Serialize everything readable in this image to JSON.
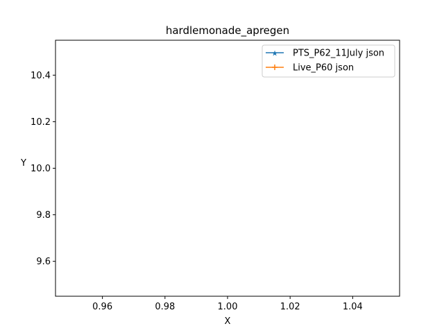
{
  "chart_data": {
    "type": "line",
    "title": "hardlemonade_apregen",
    "xlabel": "X",
    "ylabel": "Y",
    "xlim": [
      0.945,
      1.055
    ],
    "ylim": [
      9.45,
      10.55
    ],
    "xticks": [
      0.96,
      0.98,
      1.0,
      1.02,
      1.04
    ],
    "xtick_labels": [
      "0.96",
      "0.98",
      "1.00",
      "1.02",
      "1.04"
    ],
    "yticks": [
      9.6,
      9.8,
      10.0,
      10.2,
      10.4
    ],
    "ytick_labels": [
      "9.6",
      "9.8",
      "10.0",
      "10.2",
      "10.4"
    ],
    "grid": false,
    "legend_position": "top-right",
    "series": [
      {
        "name": "PTS_P62_11July json",
        "marker": "star",
        "color": "#1f77b4",
        "x": [],
        "y": []
      },
      {
        "name": "Live_P60 json",
        "marker": "plus",
        "color": "#ff7f0e",
        "x": [],
        "y": []
      }
    ]
  }
}
